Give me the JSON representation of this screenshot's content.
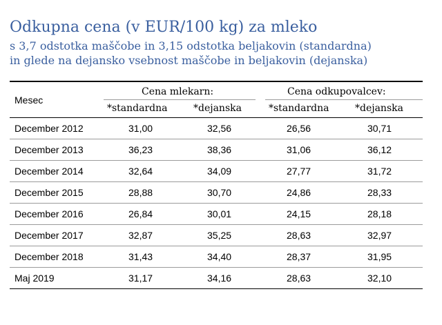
{
  "title": "Odkupna cena (v EUR/100 kg) za mleko",
  "subtitle_line1": "s 3,7 odstotka maščobe in 3,15 odstotka beljakovin (standardna)",
  "subtitle_line2": "in glede na dejansko vsebnost maščobe in beljakovin (dejanska)",
  "table": {
    "col_month": "Mesec",
    "group1": "Cena mlekarn:",
    "group2": "Cena odkupovalcev:",
    "sub_std": "*standardna",
    "sub_dej": "*dejanska",
    "rows": [
      {
        "month": "December 2012",
        "v1": "31,00",
        "v2": "32,56",
        "v3": "26,56",
        "v4": "30,71"
      },
      {
        "month": "December 2013",
        "v1": "36,23",
        "v2": "38,36",
        "v3": "31,06",
        "v4": "36,12"
      },
      {
        "month": "December 2014",
        "v1": "32,64",
        "v2": "34,09",
        "v3": "27,77",
        "v4": "31,72"
      },
      {
        "month": "December 2015",
        "v1": "28,88",
        "v2": "30,70",
        "v3": "24,86",
        "v4": "28,33"
      },
      {
        "month": "December 2016",
        "v1": "26,84",
        "v2": "30,01",
        "v3": "24,15",
        "v4": "28,18"
      },
      {
        "month": "December 2017",
        "v1": "32,87",
        "v2": "35,25",
        "v3": "28,63",
        "v4": "32,97"
      },
      {
        "month": "December 2018",
        "v1": "31,43",
        "v2": "34,40",
        "v3": "28,37",
        "v4": "31,95"
      },
      {
        "month": "Maj 2019",
        "v1": "31,17",
        "v2": "34,16",
        "v3": "28,63",
        "v4": "32,10"
      }
    ]
  }
}
